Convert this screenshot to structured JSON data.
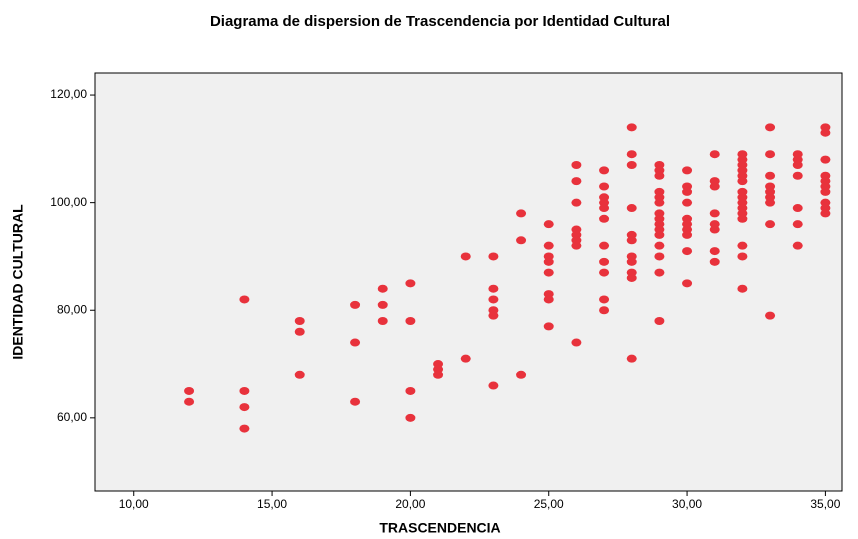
{
  "chart_data": {
    "type": "scatter",
    "title": "Diagrama de dispersion de Trascendencia por Identidad Cultural",
    "x_label": "TRASCENDENCIA",
    "y_label": "IDENTIDAD CULTURAL",
    "color": "#e8323c",
    "xlim": [
      8.6,
      35.6
    ],
    "ylim": [
      46.4,
      124.1
    ],
    "xticks": [
      {
        "value": 10,
        "label": "10,00"
      },
      {
        "value": 15,
        "label": "15,00"
      },
      {
        "value": 20,
        "label": "20,00"
      },
      {
        "value": 25,
        "label": "25,00"
      },
      {
        "value": 30,
        "label": "30,00"
      },
      {
        "value": 35,
        "label": "35,00"
      }
    ],
    "yticks": [
      {
        "value": 60,
        "label": "60,00"
      },
      {
        "value": 80,
        "label": "80,00"
      },
      {
        "value": 100,
        "label": "100,00"
      },
      {
        "value": 120,
        "label": "120,00"
      }
    ],
    "x": [
      12,
      12,
      14,
      14,
      14,
      14,
      16,
      16,
      16,
      18,
      18,
      18,
      19,
      19,
      19,
      20,
      20,
      20,
      20,
      21,
      21,
      21,
      22,
      22,
      23,
      23,
      23,
      23,
      23,
      23,
      24,
      24,
      24,
      25,
      25,
      25,
      25,
      25,
      25,
      25,
      25,
      26,
      26,
      26,
      26,
      26,
      26,
      26,
      26,
      27,
      27,
      27,
      27,
      27,
      27,
      27,
      27,
      27,
      27,
      27,
      28,
      28,
      28,
      28,
      28,
      28,
      28,
      28,
      28,
      28,
      28,
      29,
      29,
      29,
      29,
      29,
      29,
      29,
      29,
      29,
      29,
      29,
      29,
      29,
      29,
      29,
      30,
      30,
      30,
      30,
      30,
      30,
      30,
      30,
      30,
      30,
      31,
      31,
      31,
      31,
      31,
      31,
      31,
      31,
      32,
      32,
      32,
      32,
      32,
      32,
      32,
      32,
      32,
      32,
      32,
      32,
      32,
      32,
      32,
      33,
      33,
      33,
      33,
      33,
      33,
      33,
      33,
      33,
      34,
      34,
      34,
      34,
      34,
      34,
      34,
      35,
      35,
      35,
      35,
      35,
      35,
      35,
      35,
      35,
      35
    ],
    "y": [
      65,
      63,
      82,
      65,
      62,
      58,
      78,
      76,
      68,
      81,
      74,
      63,
      84,
      81,
      78,
      85,
      78,
      65,
      60,
      70,
      69,
      68,
      90,
      71,
      90,
      84,
      82,
      80,
      79,
      66,
      98,
      93,
      68,
      96,
      92,
      90,
      89,
      87,
      83,
      82,
      77,
      107,
      104,
      100,
      95,
      94,
      93,
      92,
      74,
      106,
      103,
      101,
      100,
      99,
      97,
      92,
      89,
      87,
      82,
      80,
      114,
      109,
      107,
      99,
      94,
      93,
      90,
      89,
      87,
      86,
      71,
      107,
      106,
      105,
      102,
      101,
      100,
      98,
      97,
      96,
      95,
      94,
      92,
      90,
      87,
      78,
      106,
      103,
      102,
      100,
      97,
      96,
      95,
      94,
      91,
      85,
      109,
      104,
      103,
      98,
      96,
      95,
      91,
      89,
      109,
      108,
      107,
      106,
      105,
      104,
      102,
      101,
      100,
      99,
      98,
      97,
      92,
      90,
      84,
      114,
      109,
      105,
      103,
      102,
      101,
      100,
      96,
      79,
      109,
      108,
      107,
      105,
      99,
      96,
      92,
      114,
      113,
      108,
      105,
      104,
      103,
      102,
      100,
      99,
      98
    ]
  }
}
